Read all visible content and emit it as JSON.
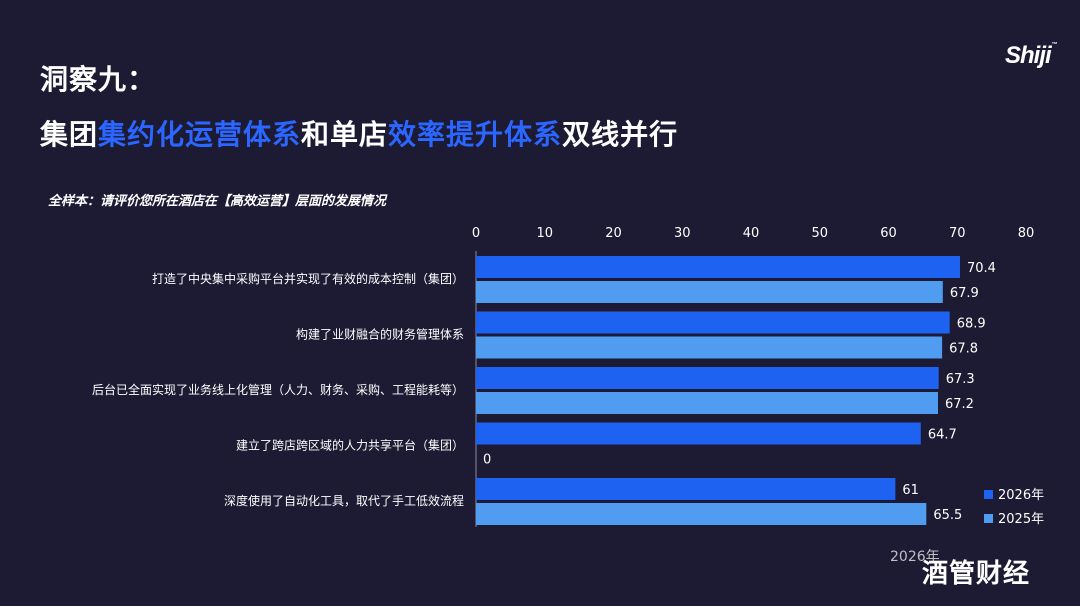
{
  "header": {
    "line1": "洞察九：",
    "line2_parts": [
      {
        "text": "集团",
        "highlight": false
      },
      {
        "text": "集约化运营体系",
        "highlight": true
      },
      {
        "text": "和单店",
        "highlight": false
      },
      {
        "text": "效率提升体系",
        "highlight": true
      },
      {
        "text": "双线并行",
        "highlight": false
      }
    ]
  },
  "logo": {
    "text": "Shiji",
    "mark": "™"
  },
  "watermark": {
    "text": "2026年",
    "brand": "酒管财经"
  },
  "colors": {
    "background": "#1d1a33",
    "highlight": "#2a66ff",
    "series_2026": "#1e62f2",
    "series_2025": "#4f9cf0"
  },
  "chart_data": {
    "type": "bar",
    "orientation": "horizontal",
    "title": "全样本：请评价您所在酒店在【高效运营】层面的发展情况",
    "categories": [
      "打造了中央集中采购平台并实现了有效的成本控制（集团）",
      "构建了业财融合的财务管理体系",
      "后台已全面实现了业务线上化管理（人力、财务、采购、工程能耗等）",
      "建立了跨店跨区域的人力共享平台（集团）",
      "深度使用了自动化工具，取代了手工低效流程"
    ],
    "series": [
      {
        "name": "2026年",
        "values": [
          70.4,
          68.9,
          67.3,
          64.7,
          61
        ],
        "color": "#1e62f2"
      },
      {
        "name": "2025年",
        "values": [
          67.9,
          67.8,
          67.2,
          0,
          65.5
        ],
        "color": "#4f9cf0"
      }
    ],
    "xlim": [
      0,
      80
    ],
    "xticks": [
      0,
      10,
      20,
      30,
      40,
      50,
      60,
      70,
      80
    ],
    "axis_position": "top",
    "legend_position": "bottom-right",
    "grid": false
  }
}
